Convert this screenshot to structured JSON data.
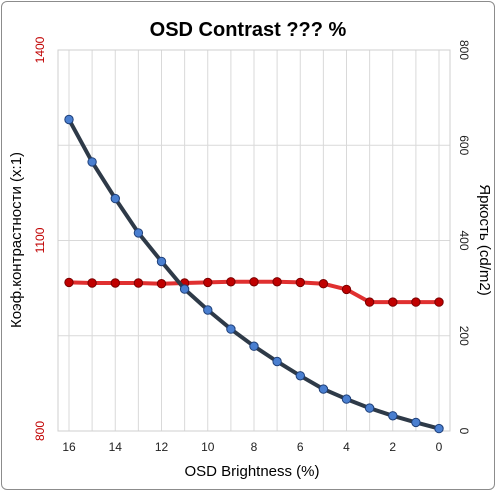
{
  "chart_data": {
    "type": "line",
    "title": "OSD Contrast ??? %",
    "xlabel": "OSD Brightness (%)",
    "ylabel_left": "Коэф.контрастности (x:1)",
    "ylabel_right": "Яркость (cd/m2)",
    "x_reversed": true,
    "xlim": [
      0,
      16
    ],
    "x_ticks": [
      16,
      14,
      12,
      10,
      8,
      6,
      4,
      2,
      0
    ],
    "ylim_left": [
      800,
      1400
    ],
    "y_ticks_left": [
      800,
      1100,
      1400
    ],
    "ylim_right": [
      0,
      800
    ],
    "y_ticks_right": [
      0,
      200,
      400,
      600,
      800
    ],
    "grid": true,
    "colors": {
      "contrast": "#e03030",
      "brightness": "#2e3a48",
      "marker_blue": "#4a7fd0",
      "marker_red": "#c00000",
      "left_axis_text": "#c00000"
    },
    "x": [
      16,
      15,
      14,
      13,
      12,
      11,
      10,
      9,
      8,
      7,
      6,
      5,
      4,
      3,
      2,
      1,
      0
    ],
    "series": [
      {
        "key": "contrast",
        "axis": "left",
        "values": [
          1034,
          1033,
          1033,
          1033,
          1032,
          1033,
          1034,
          1035,
          1035,
          1035,
          1034,
          1032,
          1023,
          1003,
          1003,
          1003,
          1003
        ]
      },
      {
        "key": "brightness",
        "axis": "right",
        "values": [
          654,
          565,
          488,
          416,
          356,
          298,
          254,
          214,
          178,
          146,
          116,
          88,
          67,
          48,
          32,
          18,
          5
        ]
      }
    ]
  }
}
